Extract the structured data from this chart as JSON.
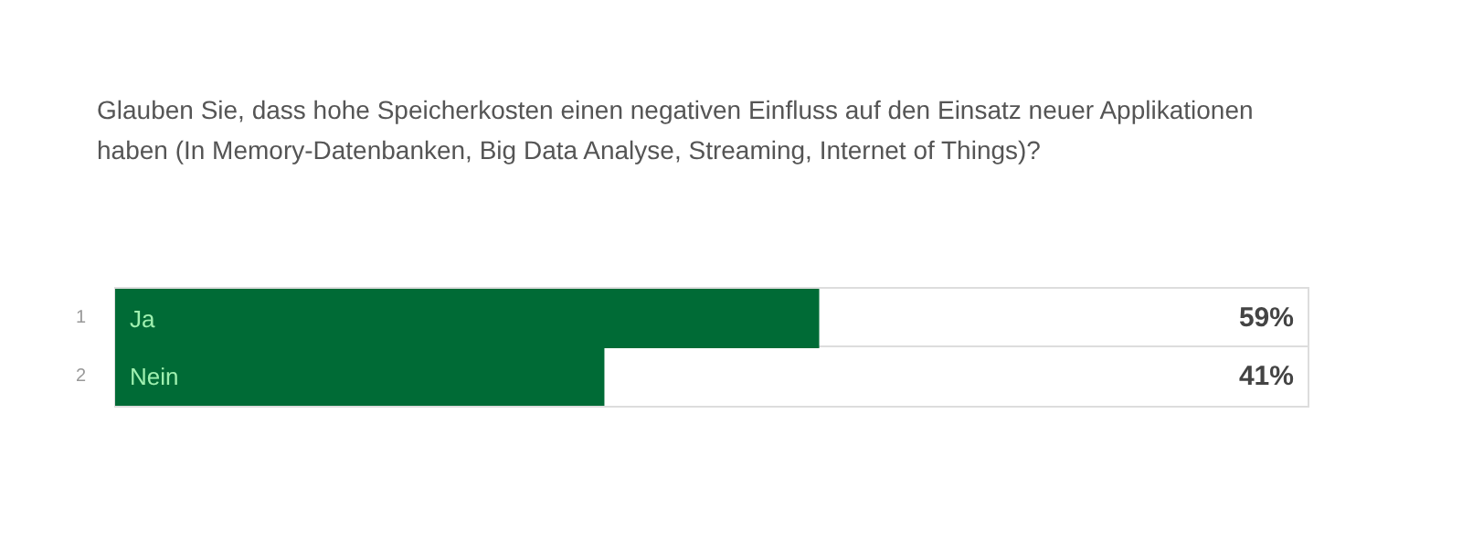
{
  "chart_data": {
    "type": "bar",
    "orientation": "horizontal",
    "title": "Glauben Sie, dass hohe Speicherkosten einen negativen Einfluss auf den Einsatz neuer Applikationen haben (In Memory-Datenbanken, Big Data Analyse, Streaming, Internet of Things)?",
    "categories": [
      "Ja",
      "Nein"
    ],
    "values": [
      59,
      41
    ],
    "value_labels": [
      "59%",
      "41%"
    ],
    "color": "#006b36",
    "annotations": [
      "1",
      "2"
    ]
  }
}
